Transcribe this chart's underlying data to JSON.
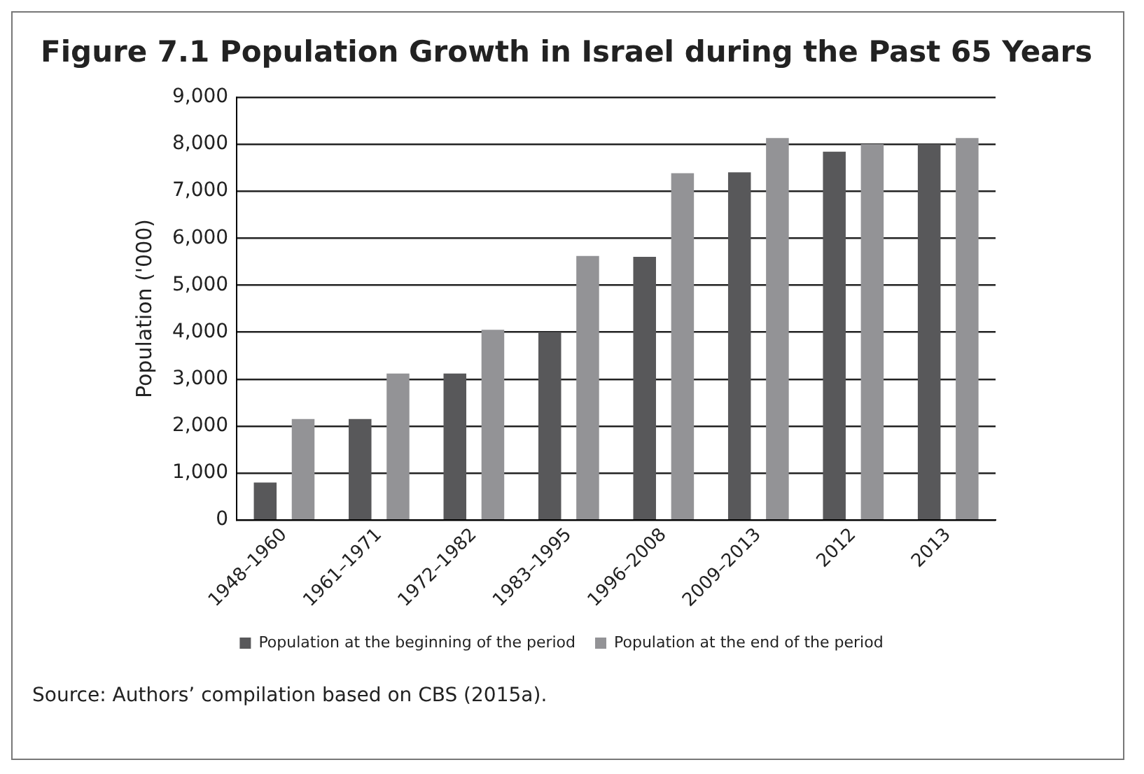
{
  "chart_data": {
    "type": "bar",
    "title": "Figure 7.1  Population Growth in Israel during the Past 65 Years",
    "ylabel": "Population ('000)",
    "categories": [
      "1948–1960",
      "1961–1971",
      "1972–1982",
      "1983–1995",
      "1996–2008",
      "2009–2013",
      "2012",
      "2013"
    ],
    "series": [
      {
        "name": "Population at the beginning of the period",
        "color": "#58585a",
        "values": [
          800,
          2150,
          3120,
          4000,
          5600,
          7400,
          7840,
          8000
        ]
      },
      {
        "name": "Population at the end of the period",
        "color": "#939396",
        "values": [
          2150,
          3120,
          4050,
          5620,
          7380,
          8130,
          8000,
          8130
        ]
      }
    ],
    "ylim": [
      0,
      9000
    ],
    "yticks": [
      {
        "value": 0,
        "label": "0"
      },
      {
        "value": 1000,
        "label": "1,000"
      },
      {
        "value": 2000,
        "label": "2,000"
      },
      {
        "value": 3000,
        "label": "3,000"
      },
      {
        "value": 4000,
        "label": "4,000"
      },
      {
        "value": 5000,
        "label": "5,000"
      },
      {
        "value": 6000,
        "label": "6,000"
      },
      {
        "value": 7000,
        "label": "7,000"
      },
      {
        "value": 8000,
        "label": "8,000"
      },
      {
        "value": 9000,
        "label": "9,000"
      }
    ],
    "grid": "y",
    "legend": "bottom",
    "annotations": [
      "Source: Authors’ compilation based on CBS (2015a)."
    ]
  }
}
